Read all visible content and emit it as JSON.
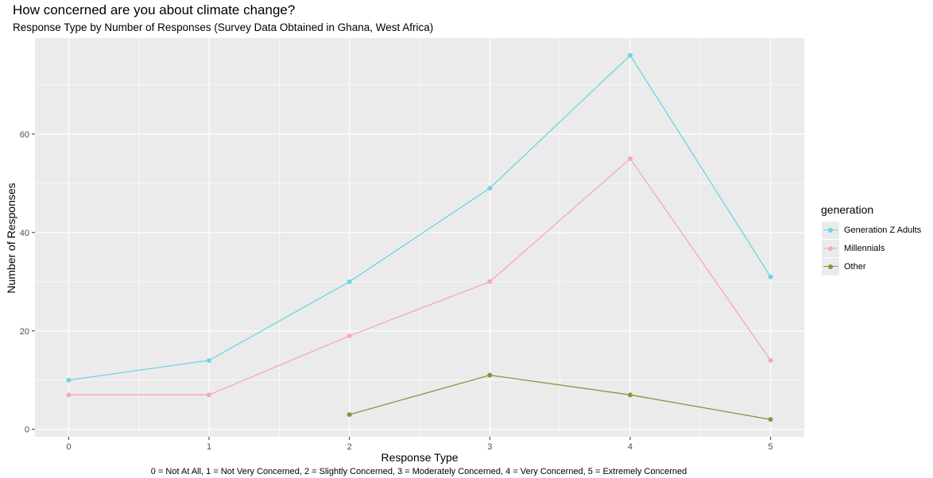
{
  "chart_data": {
    "type": "line",
    "title": "How concerned are you about climate change?",
    "subtitle": "Response Type by Number of Responses (Survey Data Obtained in Ghana, West Africa)",
    "xlabel": "Response Type",
    "ylabel": "Number of Responses",
    "caption": "0 = Not At All, 1 = Not Very Concerned, 2 = Slightly Concerned, 3 = Moderately Concerned, 4 = Very Concerned, 5 = Extremely Concerned",
    "xlim": [
      -0.24,
      5.24
    ],
    "ylim": [
      -1.5,
      79.5
    ],
    "x_ticks": [
      0,
      1,
      2,
      3,
      4,
      5
    ],
    "y_ticks": [
      0,
      20,
      40,
      60
    ],
    "grid": true,
    "legend_title": "generation",
    "legend_position": "right",
    "series": [
      {
        "name": "Generation Z Adults",
        "color": "#6fd4e4",
        "x": [
          0,
          1,
          2,
          3,
          4,
          5
        ],
        "y": [
          10,
          14,
          30,
          49,
          76,
          31
        ]
      },
      {
        "name": "Millennials",
        "color": "#f7a9b6",
        "x": [
          0,
          1,
          2,
          3,
          4,
          5
        ],
        "y": [
          7,
          7,
          19,
          30,
          55,
          14
        ]
      },
      {
        "name": "Other",
        "color": "#8a9440",
        "x": [
          2,
          3,
          4,
          5
        ],
        "y": [
          3,
          11,
          7,
          2
        ]
      }
    ]
  }
}
